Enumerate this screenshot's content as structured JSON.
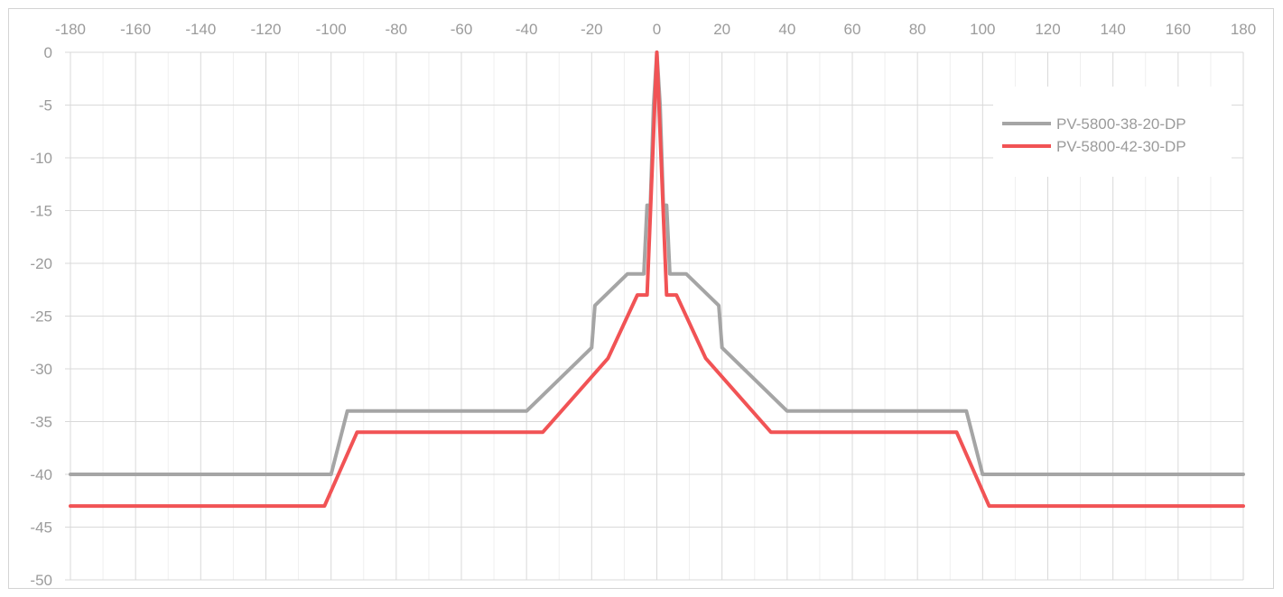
{
  "chart_data": {
    "type": "line",
    "title": "",
    "xlabel": "",
    "ylabel": "",
    "xlim": [
      -180,
      180
    ],
    "ylim": [
      -50,
      0
    ],
    "x_ticks": [
      -180,
      -160,
      -140,
      -120,
      -100,
      -80,
      -60,
      -40,
      -20,
      0,
      20,
      40,
      60,
      80,
      100,
      120,
      140,
      160,
      180
    ],
    "x_tick_labels": [
      "-180",
      "-160",
      "-140",
      "-120",
      "-100",
      "-80",
      "-60",
      "-40",
      "-20",
      "0",
      "20",
      "40",
      "60",
      "80",
      "100",
      "120",
      "140",
      "160",
      "180"
    ],
    "y_ticks": [
      0,
      -5,
      -10,
      -15,
      -20,
      -25,
      -30,
      -35,
      -40,
      -45,
      -50
    ],
    "y_tick_labels": [
      "0",
      "-5",
      "-10",
      "-15",
      "-20",
      "-25",
      "-30",
      "-35",
      "-40",
      "-45",
      "-50"
    ],
    "x_axis_position": "top",
    "grid": true,
    "legend_position": "top-right",
    "series": [
      {
        "name": "PV-5800-38-20-DP",
        "color": "#a5a5a5",
        "x": [
          -180,
          -100,
          -95,
          -40,
          -20,
          -19,
          -9,
          -4,
          -3,
          -2,
          -1,
          0,
          1,
          2,
          3,
          4,
          9,
          19,
          20,
          40,
          95,
          100,
          180
        ],
        "y": [
          -40,
          -40,
          -34,
          -34,
          -28,
          -24,
          -21,
          -21,
          -14.5,
          -14.5,
          -5,
          0,
          -5,
          -14.5,
          -14.5,
          -21,
          -21,
          -24,
          -28,
          -34,
          -34,
          -40,
          -40
        ]
      },
      {
        "name": "PV-5800-42-30-DP",
        "color": "#f15355",
        "x": [
          -180,
          -102,
          -92,
          -35,
          -15,
          -6,
          -3,
          0,
          3,
          6,
          15,
          35,
          92,
          102,
          180
        ],
        "y": [
          -43,
          -43,
          -36,
          -36,
          -29,
          -23,
          -23,
          0,
          -23,
          -23,
          -29,
          -36,
          -36,
          -43,
          -43
        ]
      }
    ]
  }
}
